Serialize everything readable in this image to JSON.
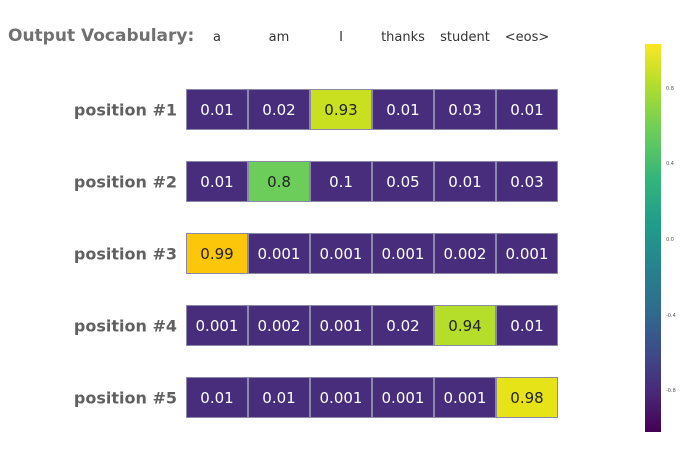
{
  "chart_data": {
    "type": "heatmap",
    "title": "Output Vocabulary:",
    "columns": [
      "a",
      "am",
      "I",
      "thanks",
      "student",
      "<eos>"
    ],
    "rows": [
      "position #1",
      "position #2",
      "position #3",
      "position #4",
      "position #5"
    ],
    "values": [
      [
        "0.01",
        "0.02",
        "0.93",
        "0.01",
        "0.03",
        "0.01"
      ],
      [
        "0.01",
        "0.8",
        "0.1",
        "0.05",
        "0.01",
        "0.03"
      ],
      [
        "0.99",
        "0.001",
        "0.001",
        "0.001",
        "0.002",
        "0.001"
      ],
      [
        "0.001",
        "0.002",
        "0.001",
        "0.02",
        "0.94",
        "0.01"
      ],
      [
        "0.01",
        "0.01",
        "0.001",
        "0.001",
        "0.001",
        "0.98"
      ]
    ],
    "cell_colors": [
      [
        "#472d7b",
        "#472d7b",
        "#c8e020",
        "#472d7b",
        "#472d7b",
        "#472d7b"
      ],
      [
        "#472d7b",
        "#6ccd5a",
        "#472d7b",
        "#472d7b",
        "#472d7b",
        "#472d7b"
      ],
      [
        "#fcc60a",
        "#472d7b",
        "#472d7b",
        "#472d7b",
        "#472d7b",
        "#472d7b"
      ],
      [
        "#472d7b",
        "#472d7b",
        "#472d7b",
        "#472d7b",
        "#b5de2b",
        "#472d7b"
      ],
      [
        "#472d7b",
        "#472d7b",
        "#472d7b",
        "#472d7b",
        "#472d7b",
        "#e6e419"
      ]
    ],
    "colorbar": {
      "colorscale": "viridis",
      "ticks": [
        "0.8",
        "0.4",
        "0.0",
        "-0.4",
        "-0.8"
      ]
    }
  }
}
